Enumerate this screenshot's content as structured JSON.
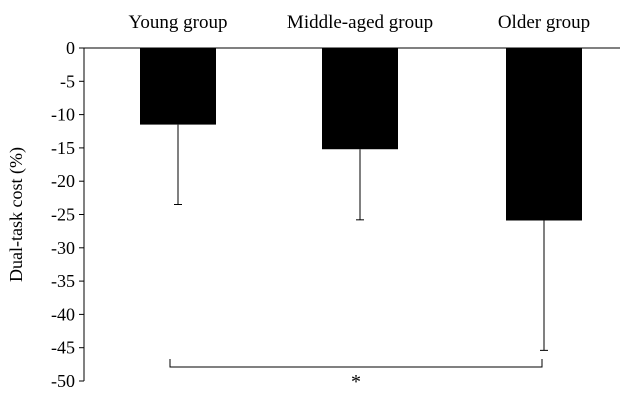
{
  "chart_data": {
    "type": "bar",
    "categories": [
      "Young group",
      "Middle-aged group",
      "Older group"
    ],
    "series": [
      {
        "values": [
          -11.5,
          -15.2,
          -25.9
        ],
        "error_bars": [
          12.0,
          10.6,
          19.5
        ]
      }
    ],
    "ylabel": "Dual-task cost (%)",
    "xlabel": "",
    "ylim": [
      -50,
      0
    ],
    "yticks": [
      0,
      -5,
      -10,
      -15,
      -20,
      -25,
      -30,
      -35,
      -40,
      -45,
      -50
    ],
    "grid": false,
    "category_labels_position": "top",
    "bar_color": "#000000",
    "significance": {
      "from": "Young group",
      "to": "Older group",
      "label": "*"
    }
  }
}
